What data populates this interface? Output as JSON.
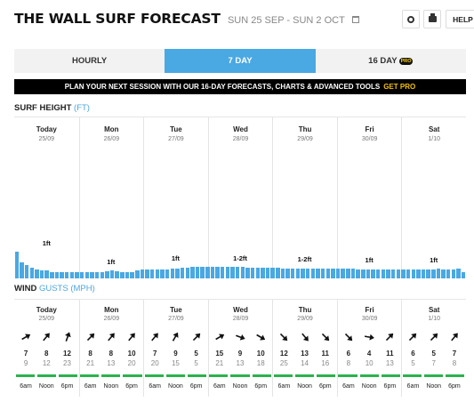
{
  "header": {
    "title": "THE WALL SURF FORECAST",
    "date_range": "SUN 25 SEP - SUN 2 OCT",
    "help_label": "HELP"
  },
  "tabs": [
    {
      "label": "HOURLY",
      "active": false
    },
    {
      "label": "7 DAY",
      "active": true
    },
    {
      "label": "16 DAY",
      "active": false,
      "badge": "PRO"
    }
  ],
  "banner": {
    "text": "PLAN YOUR NEXT SESSION WITH OUR 16-DAY FORECASTS, CHARTS & ADVANCED TOOLS",
    "cta": "GET PRO"
  },
  "surf": {
    "label": "SURF HEIGHT",
    "unit": "(FT)",
    "bar_color": "#4aa8e3",
    "bar_values": [
      1.0,
      0.6,
      0.5,
      0.4,
      0.35,
      0.3,
      0.3,
      0.25,
      0.22,
      0.22,
      0.22,
      0.22,
      0.25,
      0.25,
      0.25,
      0.25,
      0.25,
      0.25,
      0.28,
      0.3,
      0.28,
      0.25,
      0.25,
      0.25,
      0.3,
      0.32,
      0.35,
      0.35,
      0.35,
      0.35,
      0.35,
      0.38,
      0.38,
      0.4,
      0.4,
      0.42,
      0.42,
      0.42,
      0.42,
      0.42,
      0.42,
      0.42,
      0.42,
      0.42,
      0.42,
      0.42,
      0.4,
      0.4,
      0.4,
      0.4,
      0.4,
      0.4,
      0.4,
      0.38,
      0.38,
      0.38,
      0.38,
      0.38,
      0.38,
      0.38,
      0.36,
      0.36,
      0.36,
      0.36,
      0.36,
      0.36,
      0.36,
      0.36,
      0.35,
      0.35,
      0.35,
      0.35,
      0.35,
      0.35,
      0.35,
      0.35,
      0.35,
      0.35,
      0.35,
      0.35,
      0.35,
      0.35,
      0.35,
      0.35,
      0.36,
      0.35,
      0.35,
      0.35,
      0.36,
      0.22
    ],
    "days": [
      {
        "name": "Today",
        "date": "25/09",
        "height": "1ft"
      },
      {
        "name": "Mon",
        "date": "26/09",
        "height": "1ft"
      },
      {
        "name": "Tue",
        "date": "27/09",
        "height": "1ft"
      },
      {
        "name": "Wed",
        "date": "28/09",
        "height": "1-2ft"
      },
      {
        "name": "Thu",
        "date": "29/09",
        "height": "1-2ft"
      },
      {
        "name": "Fri",
        "date": "30/09",
        "height": "1ft"
      },
      {
        "name": "Sat",
        "date": "1/10",
        "height": "1ft"
      }
    ]
  },
  "wind": {
    "label": "WIND",
    "unit": "GUSTS (MPH)",
    "time_bar_color": "#2bb24c",
    "times": [
      "6am",
      "Noon",
      "6pm"
    ],
    "days": [
      {
        "name": "Today",
        "date": "25/09",
        "speed": [
          "7",
          "8",
          "12"
        ],
        "gust": [
          "9",
          "12",
          "23"
        ],
        "dir": [
          60,
          40,
          20
        ]
      },
      {
        "name": "Mon",
        "date": "26/09",
        "speed": [
          "8",
          "8",
          "10"
        ],
        "gust": [
          "21",
          "13",
          "20"
        ],
        "dir": [
          45,
          40,
          40
        ]
      },
      {
        "name": "Tue",
        "date": "27/09",
        "speed": [
          "7",
          "9",
          "5"
        ],
        "gust": [
          "20",
          "15",
          "5"
        ],
        "dir": [
          40,
          30,
          45
        ]
      },
      {
        "name": "Wed",
        "date": "28/09",
        "speed": [
          "15",
          "9",
          "10"
        ],
        "gust": [
          "21",
          "13",
          "18"
        ],
        "dir": [
          60,
          110,
          120
        ]
      },
      {
        "name": "Thu",
        "date": "29/09",
        "speed": [
          "12",
          "13",
          "11"
        ],
        "gust": [
          "25",
          "14",
          "16"
        ],
        "dir": [
          135,
          140,
          135
        ]
      },
      {
        "name": "Fri",
        "date": "30/09",
        "speed": [
          "6",
          "4",
          "11"
        ],
        "gust": [
          "8",
          "10",
          "13"
        ],
        "dir": [
          135,
          100,
          45
        ]
      },
      {
        "name": "Sat",
        "date": "1/10",
        "speed": [
          "6",
          "5",
          "7"
        ],
        "gust": [
          "5",
          "7",
          "8"
        ],
        "dir": [
          45,
          45,
          40
        ]
      }
    ]
  }
}
